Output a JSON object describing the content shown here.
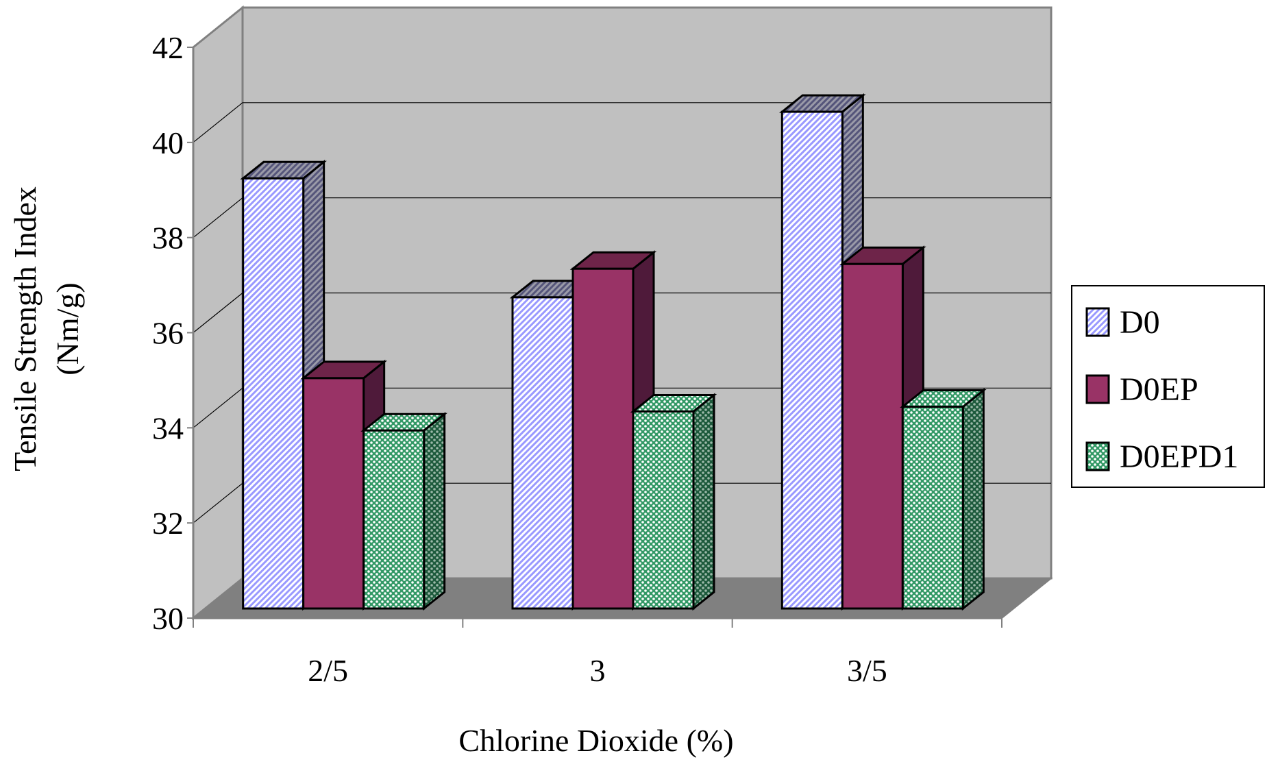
{
  "chart_data": {
    "type": "bar",
    "style": "3d-clustered-column",
    "title": "",
    "xlabel": "Chlorine Dioxide (%)",
    "ylabel_line1": "Tensile Strength Index",
    "ylabel_line2": "(Nm/g)",
    "categories": [
      "2/5",
      "3",
      "3/5"
    ],
    "ylim": [
      30,
      42
    ],
    "yticks": [
      "30",
      "32",
      "34",
      "36",
      "38",
      "40",
      "42"
    ],
    "grid": true,
    "legend_position": "right",
    "series": [
      {
        "name": "D0",
        "values": [
          39.1,
          36.6,
          40.5
        ],
        "color": "#9999ff",
        "pattern": "diagonal-stripes"
      },
      {
        "name": "D0EP",
        "values": [
          34.9,
          37.2,
          37.3
        ],
        "color": "#993366",
        "pattern": "solid"
      },
      {
        "name": "D0EPD1",
        "values": [
          33.8,
          34.2,
          34.3
        ],
        "color": "#339966",
        "pattern": "checker"
      }
    ],
    "colors": {
      "wall": "#c0c0c0",
      "floor": "#808080",
      "grid": "#000000"
    }
  }
}
